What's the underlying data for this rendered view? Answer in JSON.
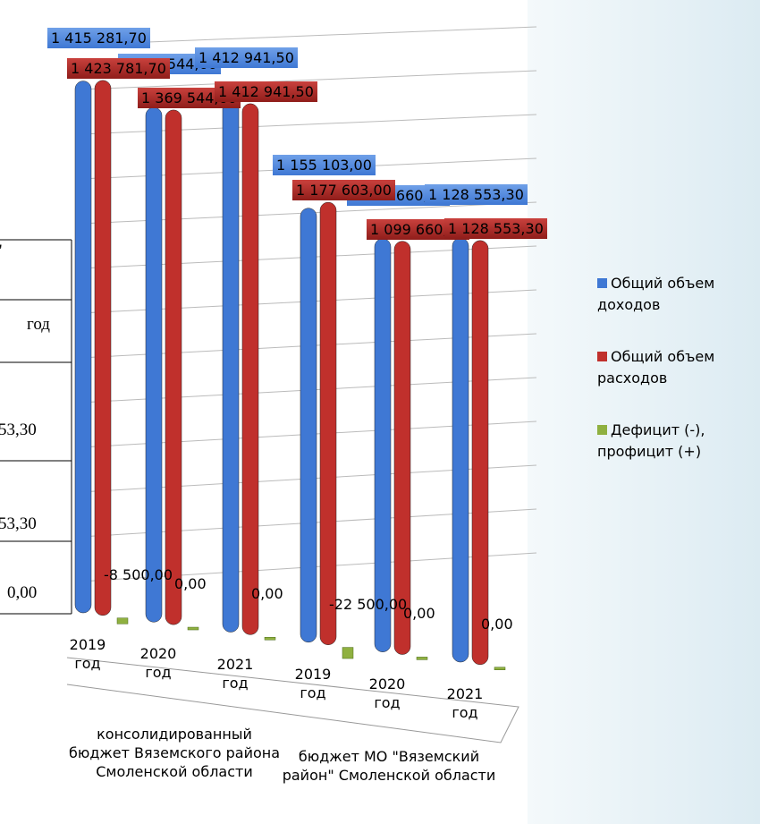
{
  "background_table": {
    "cells": [
      "\"",
      "год",
      "53,30",
      "53,30",
      "0,00"
    ]
  },
  "chart_data": {
    "type": "bar3d",
    "categories": [
      "2019 год",
      "2020 год",
      "2021 год",
      "2019 год",
      "2020 год",
      "2021 год"
    ],
    "groups": [
      "консолидированный бюджет Вяземского района Смоленской области",
      "бюджет МО \"Вяземский район\" Смоленской области"
    ],
    "ylim": [
      0,
      1500000
    ],
    "series": [
      {
        "name": "Общий объем доходов",
        "color": "#3f78d4",
        "values": [
          1415281.7,
          1369544.6,
          1412941.5,
          1155103.0,
          1099660.2,
          1128553.3
        ],
        "value_labels": [
          "1 415 281,70",
          "1 369 544,60",
          "1 412 941,50",
          "1 155 103,00",
          "1 099 660,20",
          "1 128 553,30"
        ]
      },
      {
        "name": "Общий объем расходов",
        "color": "#c0302c",
        "values": [
          1423781.7,
          1369544.6,
          1412941.5,
          1177603.0,
          1099660.2,
          1128553.3
        ],
        "value_labels": [
          "1 423 781,70",
          "1 369 544,60",
          "1 412 941,50",
          "1 177 603,00",
          "1 099 660,20",
          "1 128 553,30"
        ]
      },
      {
        "name": "Дефицит (-), профицит (+)",
        "color": "#8fb040",
        "values": [
          -8500,
          0,
          0,
          -22500,
          0,
          0
        ],
        "value_labels": [
          "-8 500,00",
          "0,00",
          "0,00",
          "-22 500,00",
          "0,00",
          "0,00"
        ]
      }
    ],
    "legend": "right"
  }
}
